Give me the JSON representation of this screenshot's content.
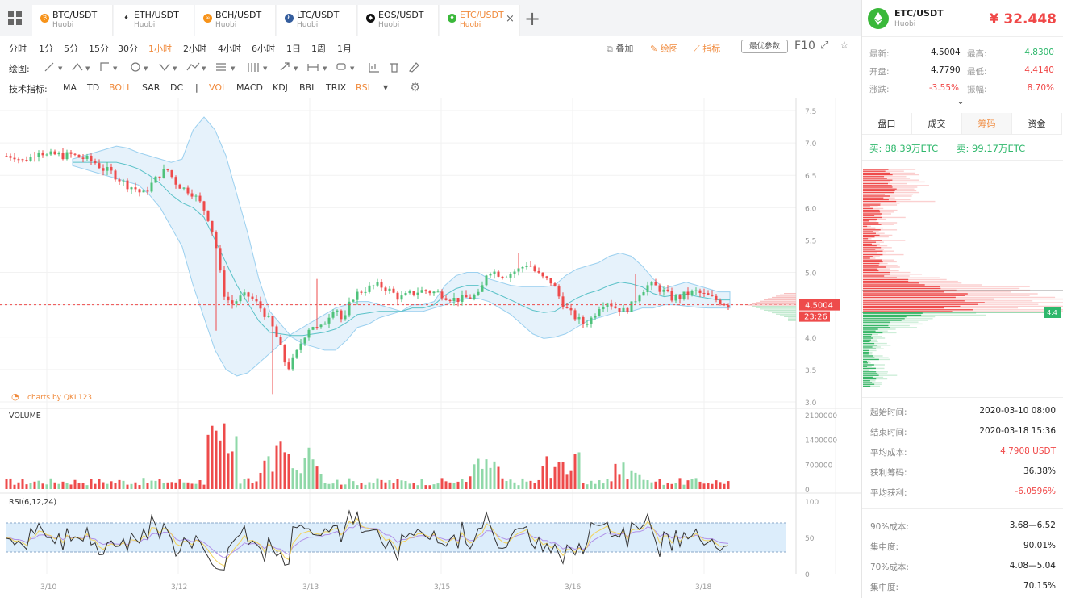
{
  "tabs": [
    {
      "pair": "BTC/USDT",
      "exchange": "Huobi",
      "icon": "btc-icon",
      "glyph": "₿",
      "color": "#f7931a"
    },
    {
      "pair": "ETH/USDT",
      "exchange": "Huobi",
      "icon": "eth-icon",
      "glyph": "♦",
      "color": "#ffffff"
    },
    {
      "pair": "BCH/USDT",
      "exchange": "Huobi",
      "icon": "bch-icon",
      "glyph": "∞",
      "color": "#f7931a"
    },
    {
      "pair": "LTC/USDT",
      "exchange": "Huobi",
      "icon": "ltc-icon",
      "glyph": "Ł",
      "color": "#345d9d"
    },
    {
      "pair": "EOS/USDT",
      "exchange": "Huobi",
      "icon": "eos-icon",
      "glyph": "◆",
      "color": "#111111"
    },
    {
      "pair": "ETC/USDT",
      "exchange": "Huobi",
      "icon": "etc-icon",
      "glyph": "♦",
      "color": "#3ab83a",
      "active": true
    }
  ],
  "timeframes": [
    "分时",
    "1分",
    "5分",
    "15分",
    "30分",
    "1小时",
    "2小时",
    "4小时",
    "6小时",
    "1日",
    "1周",
    "1月"
  ],
  "timeframe_active": "1小时",
  "tools": {
    "overlay": "叠加",
    "draw": "绘图",
    "indicator": "指标",
    "optimal": "最优参数",
    "f10": "F10"
  },
  "draw_label": "绘图:",
  "ind_label": "技术指标:",
  "indicators": [
    "MA",
    "TD",
    "BOLL",
    "SAR",
    "DC",
    "|",
    "VOL",
    "MACD",
    "KDJ",
    "BBI",
    "TRIX",
    "RSI"
  ],
  "indicators_active": [
    "BOLL",
    "VOL",
    "RSI"
  ],
  "watermark": "charts by QKL123",
  "header": {
    "pair": "ETC/USDT",
    "exchange": "Huobi",
    "price": "¥ 32.448"
  },
  "stats": {
    "latest_k": "最新:",
    "latest": "4.5004",
    "high_k": "最高:",
    "high": "4.8300",
    "open_k": "开盘:",
    "open": "4.7790",
    "low_k": "最低:",
    "low": "4.4140",
    "change_k": "涨跌:",
    "change": "-3.55%",
    "amp_k": "振幅:",
    "amp": "8.70%"
  },
  "rtabs": [
    "盘口",
    "成交",
    "筹码",
    "资金"
  ],
  "rtab_active": "筹码",
  "buy_label": "买:",
  "buy": "88.39万ETC",
  "sell_label": "卖:",
  "sell": "99.17万ETC",
  "chip_marker": "4.4",
  "info": [
    {
      "k": "起始时间:",
      "v": "2020-03-10 08:00",
      "c": "#222"
    },
    {
      "k": "结束时间:",
      "v": "2020-03-18 15:36",
      "c": "#222"
    },
    {
      "k": "平均成本:",
      "v": "4.7908 USDT",
      "c": "#f04848"
    },
    {
      "k": "获利筹码:",
      "v": "36.38%",
      "c": "#222"
    },
    {
      "k": "平均获利:",
      "v": "-6.0596%",
      "c": "#f04848"
    }
  ],
  "info2": [
    {
      "k": "90%成本:",
      "v": "3.68—6.52"
    },
    {
      "k": "集中度:",
      "v": "90.01%"
    },
    {
      "k": "70%成本:",
      "v": "4.08—5.04"
    },
    {
      "k": "集中度:",
      "v": "70.15%"
    }
  ],
  "price_tag": "4.5004",
  "countdown": "23:26",
  "chart_data": {
    "type": "candlestick",
    "price_axis": {
      "ticks": [
        "7.5",
        "7.0",
        "6.5",
        "6.0",
        "5.5",
        "5.0",
        "4.5",
        "4.0",
        "3.5",
        "3.0"
      ],
      "min": 3.0,
      "max": 7.5
    },
    "volume_axis": {
      "ticks": [
        "2100000",
        "1400000",
        "700000",
        "0"
      ],
      "label": "VOLUME"
    },
    "rsi_axis": {
      "ticks": [
        "100",
        "50",
        "0"
      ],
      "label": "RSI(6,12,24)",
      "bands": [
        30,
        70
      ]
    },
    "x_ticks": [
      "3/10",
      "3/12",
      "3/13",
      "3/15",
      "3/16",
      "3/18"
    ],
    "close_path": [
      6.8,
      6.8,
      6.72,
      6.78,
      6.9,
      6.8,
      6.82,
      6.8,
      6.82,
      6.78,
      6.75,
      6.7,
      6.6,
      6.55,
      6.45,
      6.35,
      6.3,
      6.2,
      6.35,
      6.5,
      6.6,
      6.4,
      6.3,
      6.25,
      6.1,
      5.9,
      5.5,
      4.7,
      4.5,
      4.6,
      4.65,
      4.55,
      4.4,
      4.2,
      3.9,
      3.5,
      3.7,
      4.0,
      4.2,
      4.1,
      4.3,
      4.5,
      4.2,
      4.6,
      4.7,
      4.75,
      4.8,
      4.78,
      4.7,
      4.6,
      4.65,
      4.7,
      4.72,
      4.7,
      4.68,
      4.62,
      4.58,
      4.6,
      4.62,
      4.65,
      5.05,
      5.0,
      4.95,
      5.0,
      5.05,
      5.15,
      5.0,
      4.9,
      4.85,
      4.6,
      4.4,
      4.3,
      4.2,
      4.3,
      4.5,
      4.55,
      4.45,
      4.4,
      4.5,
      4.7,
      4.8,
      4.78,
      4.7,
      4.6,
      4.62,
      4.68,
      4.7,
      4.65,
      4.6,
      4.55,
      4.5
    ],
    "boll_upper": [
      6.75,
      6.8,
      6.85,
      6.9,
      6.95,
      6.92,
      6.85,
      6.8,
      6.75,
      6.7,
      6.75,
      7.2,
      7.4,
      7.2,
      6.8,
      6.2,
      5.6,
      4.9,
      4.4,
      4.2,
      4.0,
      3.9,
      3.85,
      3.8,
      3.8,
      3.95,
      4.15,
      4.2,
      4.3,
      4.35,
      4.4,
      4.5,
      4.5,
      4.55,
      4.8,
      4.95,
      5.0,
      5.0,
      4.9,
      4.85,
      4.8,
      4.78,
      4.78,
      4.78,
      4.8,
      4.95,
      5.05,
      5.1,
      5.15,
      5.25,
      5.3,
      5.25,
      5.1,
      4.9,
      4.75,
      4.8,
      4.85,
      4.8,
      4.75,
      4.7,
      4.7
    ],
    "boll_lower": [
      6.65,
      6.6,
      6.55,
      6.5,
      6.45,
      6.4,
      6.35,
      6.2,
      6.0,
      5.7,
      5.4,
      4.8,
      4.3,
      3.8,
      3.5,
      3.4,
      3.45,
      3.6,
      3.75,
      3.9,
      4.05,
      4.15,
      4.25,
      4.35,
      4.45,
      4.5,
      4.55,
      4.55,
      4.5,
      4.45,
      4.4,
      4.4,
      4.4,
      4.45,
      4.5,
      4.55,
      4.6,
      4.6,
      4.55,
      4.45,
      4.35,
      4.2,
      4.05,
      3.98,
      4.0,
      4.05,
      4.15,
      4.25,
      4.3,
      4.35,
      4.4,
      4.4,
      4.45,
      4.45,
      4.5,
      4.5,
      4.48,
      4.46,
      4.45,
      4.45,
      4.45
    ]
  }
}
